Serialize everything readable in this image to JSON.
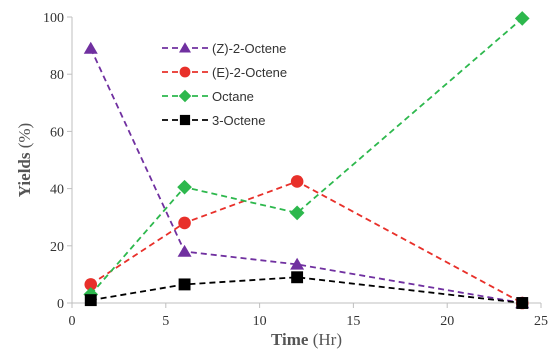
{
  "chart_data": {
    "type": "line",
    "xlabel_main": "Time",
    "xlabel_unit": "(Hr)",
    "ylabel_main": "Yields",
    "ylabel_unit": "(%)",
    "xlim": [
      0,
      25
    ],
    "ylim": [
      0,
      100
    ],
    "xticks": [
      0,
      5,
      10,
      15,
      20,
      25
    ],
    "yticks": [
      0,
      20,
      40,
      60,
      80,
      100
    ],
    "grid": false,
    "legend_position": "top-center",
    "series": [
      {
        "name": "(Z)-2-Octene",
        "color": "#7030a0",
        "marker": "triangle",
        "line_style": "dashed",
        "x": [
          1,
          6,
          12,
          24
        ],
        "y": [
          89,
          18,
          13.5,
          0
        ]
      },
      {
        "name": "(E)-2-Octene",
        "color": "#e8302a",
        "marker": "circle",
        "line_style": "dashed",
        "x": [
          1,
          6,
          12,
          24
        ],
        "y": [
          6.5,
          28,
          42.5,
          0
        ]
      },
      {
        "name": "Octane",
        "color": "#2db84d",
        "marker": "diamond",
        "line_style": "dashed",
        "x": [
          1,
          6,
          12,
          24
        ],
        "y": [
          3,
          40.5,
          31.5,
          99.5
        ]
      },
      {
        "name": "3-Octene",
        "color": "#000000",
        "marker": "square",
        "line_style": "dashed",
        "x": [
          1,
          6,
          12,
          24
        ],
        "y": [
          1,
          6.5,
          9,
          0
        ]
      }
    ]
  }
}
